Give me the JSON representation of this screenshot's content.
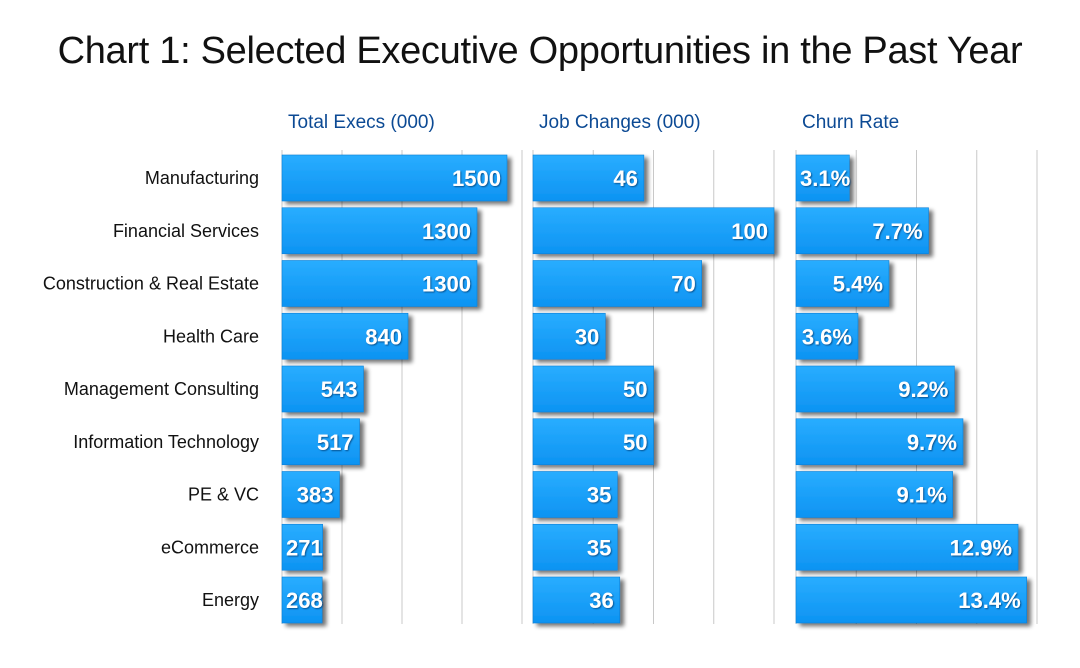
{
  "colors": {
    "bar": "#1aa3ff",
    "bar_edge": "#0b7fd6",
    "panel_title": "#0c4a94",
    "grid": "#c8c8c8",
    "label": "#111111",
    "value_text": "#ffffff"
  },
  "chart_data": {
    "type": "bar",
    "orientation": "horizontal",
    "title": "Chart 1: Selected Executive Opportunities in the Past Year",
    "categories": [
      "Manufacturing",
      "Financial Services",
      "Construction & Real Estate",
      "Health Care",
      "Management Consulting",
      "Information Technology",
      "PE & VC",
      "eCommerce",
      "Energy"
    ],
    "series": [
      {
        "name": "Total Execs (000)",
        "values": [
          1500,
          1300,
          1300,
          840,
          543,
          517,
          383,
          271,
          268
        ],
        "labels": [
          "1500",
          "1300",
          "1300",
          "840",
          "543",
          "517",
          "383",
          "271",
          "268"
        ],
        "xlim": [
          0,
          1600
        ],
        "gridlines": 4
      },
      {
        "name": "Job Changes (000)",
        "values": [
          46,
          100,
          70,
          30,
          50,
          50,
          35,
          35,
          36
        ],
        "labels": [
          "46",
          "100",
          "70",
          "30",
          "50",
          "50",
          "35",
          "35",
          "36"
        ],
        "xlim": [
          0,
          100
        ],
        "gridlines": 4
      },
      {
        "name": "Churn Rate",
        "values": [
          3.1,
          7.7,
          5.4,
          3.6,
          9.2,
          9.7,
          9.1,
          12.9,
          13.4
        ],
        "labels": [
          "3.1%",
          "7.7%",
          "5.4%",
          "3.6%",
          "9.2%",
          "9.7%",
          "9.1%",
          "12.9%",
          "13.4%"
        ],
        "xlim": [
          0,
          14
        ],
        "gridlines": 4
      }
    ],
    "grid": true,
    "legend": "none"
  }
}
